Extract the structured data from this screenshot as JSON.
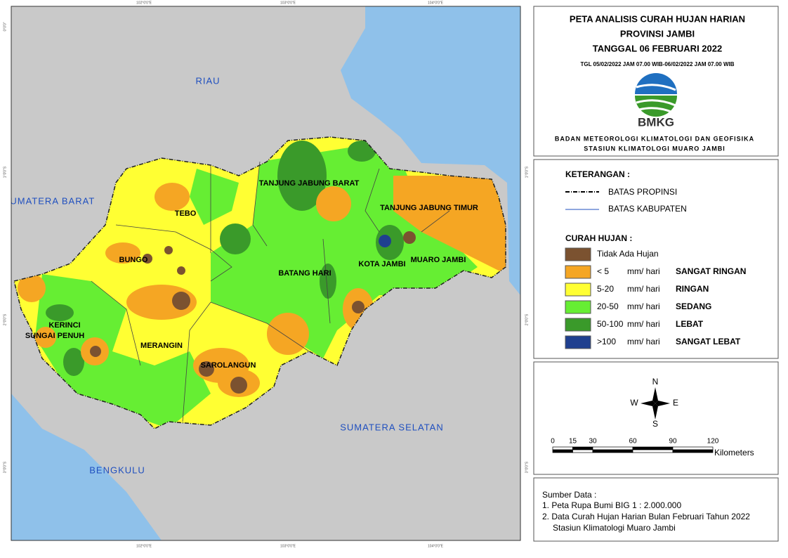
{
  "title": {
    "lines": [
      "PETA ANALISIS CURAH HUJAN HARIAN",
      "PROVINSI JAMBI",
      "TANGGAL 06 FEBRUARI 2022"
    ],
    "period": "TGL 05/02/2022 JAM 07.00 WIB-06/02/2022 JAM 07.00 WIB",
    "logo_text": "BMKG",
    "agency": [
      "BADAN METEOROLOGI KLIMATOLOGI DAN GEOFISIKA",
      "STASIUN KLIMATOLOGI MUARO JAMBI"
    ]
  },
  "legend": {
    "heading": "KETERANGAN :",
    "boundaries": [
      "BATAS PROPINSI",
      "BATAS KABUPATEN"
    ],
    "rain_heading": "CURAH HUJAN :",
    "classes": [
      {
        "range": "Tidak Ada Hujan",
        "color": "#7b5230"
      },
      {
        "range": "< 5",
        "unit": "mm/ hari",
        "category": "SANGAT RINGAN",
        "color": "#f5a623"
      },
      {
        "range": "5-20",
        "unit": "mm/ hari",
        "category": "RINGAN",
        "color": "#ffff33"
      },
      {
        "range": "20-50",
        "unit": "mm/ hari",
        "category": "SEDANG",
        "color": "#66ee33"
      },
      {
        "range": "50-100",
        "unit": "mm/ hari",
        "category": "LEBAT",
        "color": "#3a9a2a"
      },
      {
        "range": ">100",
        "unit": "mm/ hari",
        "category": "SANGAT LEBAT",
        "color": "#1f3f8f"
      }
    ]
  },
  "compass": {
    "north": "N",
    "south": "S",
    "east": "E",
    "west": "W"
  },
  "scale": {
    "ticks": [
      0,
      15,
      30,
      60,
      90,
      120
    ],
    "unit": "Kilometers"
  },
  "source": {
    "heading": "Sumber Data :",
    "items": [
      "1. Peta Rupa Bumi BIG 1 : 2.000.000",
      "2. Data Curah Hujan Harian Bulan Februari Tahun 2022",
      "Stasiun Klimatologi Muaro Jambi"
    ]
  },
  "map": {
    "regions": [
      "RIAU",
      "SUMATERA BARAT",
      "BENGKULU",
      "SUMATERA SELATAN"
    ],
    "regencies": [
      "TANJUNG JABUNG BARAT",
      "TANJUNG JABUNG TIMUR",
      "TEBO",
      "BUNGO",
      "BATANG HARI",
      "KOTA JAMBI",
      "MUARO JAMBI",
      "KERINCI",
      "SUNGAI PENUH",
      "MERANGIN",
      "SAROLANGUN"
    ],
    "lon_ticks": [
      "102°0'0\"E",
      "103°0'0\"E",
      "104°0'0\"E"
    ],
    "lat_ticks": [
      "0°0'0\"",
      "1°0'0\"S",
      "2°0'0\"S",
      "3°0'0\"S"
    ]
  }
}
